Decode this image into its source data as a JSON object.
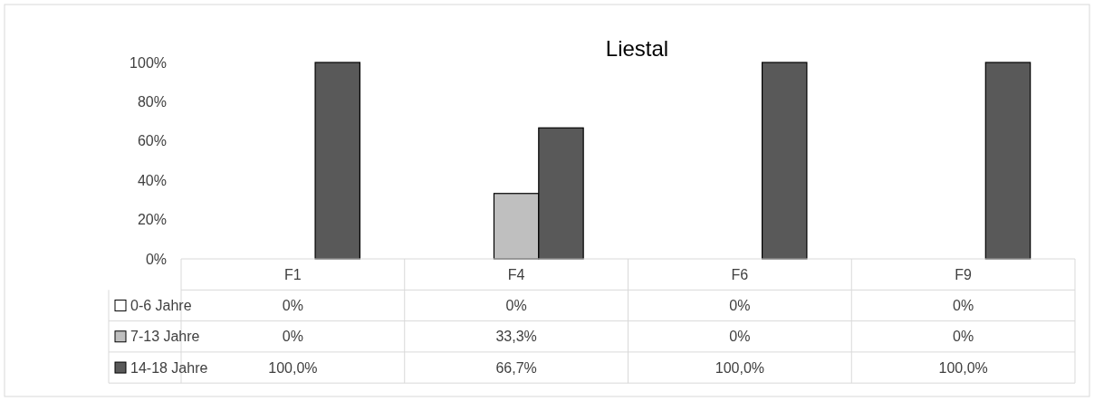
{
  "chart_data": {
    "type": "bar",
    "title": "Liestal",
    "categories": [
      "F1",
      "F4",
      "F6",
      "F9"
    ],
    "series": [
      {
        "name": "0-6 Jahre",
        "color": "#ffffff",
        "values": [
          0,
          0,
          0,
          0
        ],
        "value_labels": [
          "0%",
          "0%",
          "0%",
          "0%"
        ]
      },
      {
        "name": "7-13 Jahre",
        "color": "#bfbfbf",
        "values": [
          0,
          33.3,
          0,
          0
        ],
        "value_labels": [
          "0%",
          "33,3%",
          "0%",
          "0%"
        ]
      },
      {
        "name": "14-18 Jahre",
        "color": "#595959",
        "values": [
          100,
          66.7,
          100,
          100
        ],
        "value_labels": [
          "100,0%",
          "66,7%",
          "100,0%",
          "100,0%"
        ]
      }
    ],
    "ylim": [
      0,
      100
    ],
    "yticks": [
      {
        "value": 0,
        "label": "0%"
      },
      {
        "value": 20,
        "label": "20%"
      },
      {
        "value": 40,
        "label": "40%"
      },
      {
        "value": 60,
        "label": "60%"
      },
      {
        "value": 80,
        "label": "80%"
      },
      {
        "value": 100,
        "label": "100%"
      }
    ],
    "grid": false,
    "legend": "bottom"
  }
}
